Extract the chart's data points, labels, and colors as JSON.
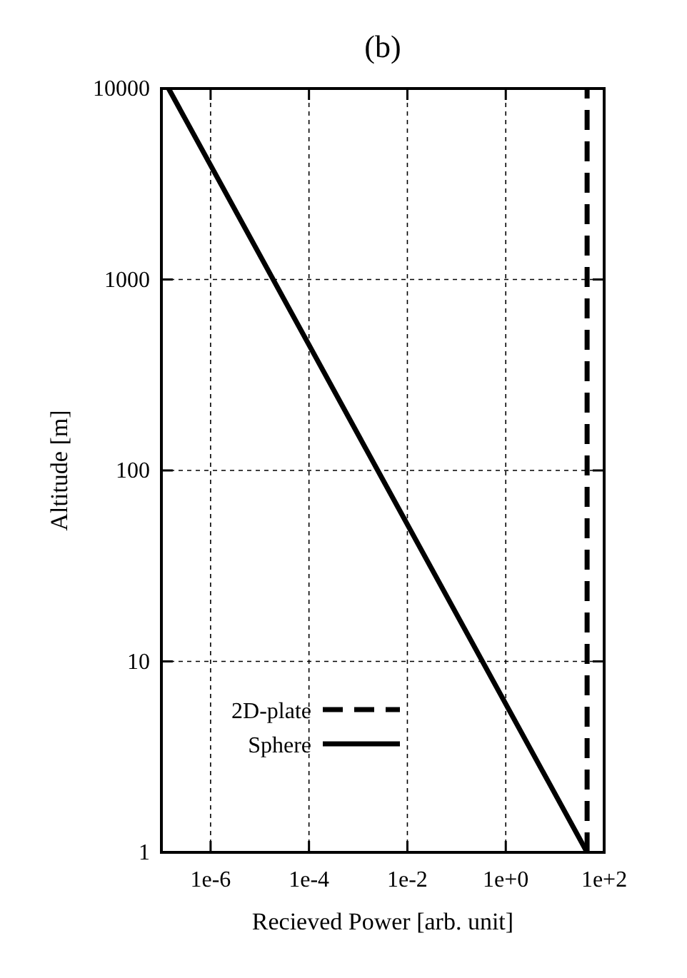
{
  "chart_data": {
    "type": "line",
    "title": "(b)",
    "xlabel": "Recieved Power [arb. unit]",
    "ylabel": "Altitude [m]",
    "log": "xy",
    "grid": true,
    "legend": "bottom left",
    "xlim": [
      1e-07,
      100
    ],
    "ylim": [
      1,
      10000
    ],
    "xticks": [
      {
        "value": 1e-06,
        "label": "1e-6"
      },
      {
        "value": 0.0001,
        "label": "1e-4"
      },
      {
        "value": 0.01,
        "label": "1e-2"
      },
      {
        "value": 1,
        "label": "1e+0"
      },
      {
        "value": 100,
        "label": "1e+2"
      }
    ],
    "yticks": [
      1,
      10,
      100,
      1000,
      10000
    ],
    "series": [
      {
        "name": "2D-plate",
        "color": "#000000",
        "line_style": "dashed",
        "x": [
          45,
          45
        ],
        "values": [
          1,
          10000
        ]
      },
      {
        "name": "Sphere",
        "color": "#000000",
        "line_style": "solid",
        "x": [
          1.4e-07,
          0.0025,
          45
        ],
        "values": [
          10000,
          100,
          1
        ]
      }
    ]
  }
}
